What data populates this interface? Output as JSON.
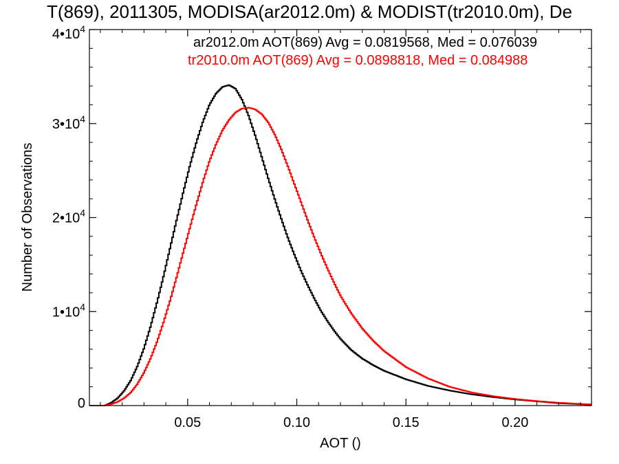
{
  "chart_data": {
    "type": "line",
    "title": "T(869), 2011305, MODISA(ar2012.0m) & MODIST(tr2010.0m), De",
    "xlabel": "AOT ()",
    "ylabel": "Number of Observations",
    "xlim": [
      0.005,
      0.235
    ],
    "ylim": [
      0,
      40000
    ],
    "x_ticks": [
      0.05,
      0.1,
      0.15,
      0.2
    ],
    "x_tick_labels": [
      "0.05",
      "0.10",
      "0.15",
      "0.20"
    ],
    "y_ticks": [
      0,
      10000,
      20000,
      30000,
      40000
    ],
    "y_tick_labels": [
      {
        "base": "0",
        "exp": ""
      },
      {
        "base": "1•10",
        "exp": "4"
      },
      {
        "base": "2•10",
        "exp": "4"
      },
      {
        "base": "3•10",
        "exp": "4"
      },
      {
        "base": "4•10",
        "exp": "4"
      }
    ],
    "step": true,
    "annotations": [
      {
        "text": "ar2012.0m AOT(869) Avg = 0.0819568, Med = 0.076039",
        "color": "#000000"
      },
      {
        "text": "tr2010.0m AOT(869) Avg = 0.0898818, Med = 0.084988",
        "color": "#ff0000"
      }
    ],
    "series": [
      {
        "color": "#000000",
        "x": [
          0.012,
          0.015,
          0.018,
          0.021,
          0.024,
          0.027,
          0.03,
          0.033,
          0.036,
          0.039,
          0.042,
          0.045,
          0.048,
          0.051,
          0.054,
          0.057,
          0.06,
          0.063,
          0.066,
          0.069,
          0.072,
          0.075,
          0.078,
          0.081,
          0.084,
          0.087,
          0.09,
          0.093,
          0.096,
          0.099,
          0.102,
          0.105,
          0.108,
          0.111,
          0.114,
          0.117,
          0.12,
          0.125,
          0.13,
          0.135,
          0.14,
          0.15,
          0.16,
          0.17,
          0.18,
          0.19,
          0.2,
          0.21,
          0.22,
          0.235
        ],
        "y": [
          0,
          300,
          800,
          1600,
          2700,
          4200,
          6100,
          8400,
          11000,
          13800,
          16800,
          19800,
          22700,
          25500,
          28000,
          30200,
          32000,
          33200,
          33900,
          34100,
          33700,
          32500,
          30800,
          28700,
          26400,
          24100,
          21900,
          19800,
          17800,
          16000,
          14300,
          12800,
          11400,
          10100,
          9000,
          8000,
          7100,
          5900,
          5000,
          4300,
          3700,
          2800,
          2100,
          1600,
          1200,
          900,
          650,
          450,
          250,
          100
        ]
      },
      {
        "color": "#ff0000",
        "x": [
          0.012,
          0.015,
          0.018,
          0.021,
          0.024,
          0.027,
          0.03,
          0.033,
          0.036,
          0.039,
          0.042,
          0.045,
          0.048,
          0.051,
          0.054,
          0.057,
          0.06,
          0.063,
          0.066,
          0.069,
          0.072,
          0.075,
          0.078,
          0.081,
          0.084,
          0.087,
          0.09,
          0.093,
          0.096,
          0.099,
          0.102,
          0.105,
          0.108,
          0.111,
          0.114,
          0.117,
          0.12,
          0.125,
          0.13,
          0.135,
          0.14,
          0.15,
          0.16,
          0.17,
          0.18,
          0.19,
          0.2,
          0.21,
          0.22,
          0.235
        ],
        "y": [
          0,
          150,
          400,
          800,
          1400,
          2300,
          3500,
          5000,
          6800,
          8900,
          11200,
          13700,
          16300,
          18900,
          21400,
          23800,
          26000,
          27800,
          29300,
          30400,
          31200,
          31600,
          31700,
          31500,
          31000,
          30100,
          28800,
          27200,
          25400,
          23500,
          21600,
          19700,
          17900,
          16200,
          14600,
          13100,
          11700,
          9800,
          8200,
          6900,
          5800,
          4100,
          2900,
          2000,
          1400,
          1000,
          700,
          480,
          300,
          120
        ]
      }
    ]
  }
}
